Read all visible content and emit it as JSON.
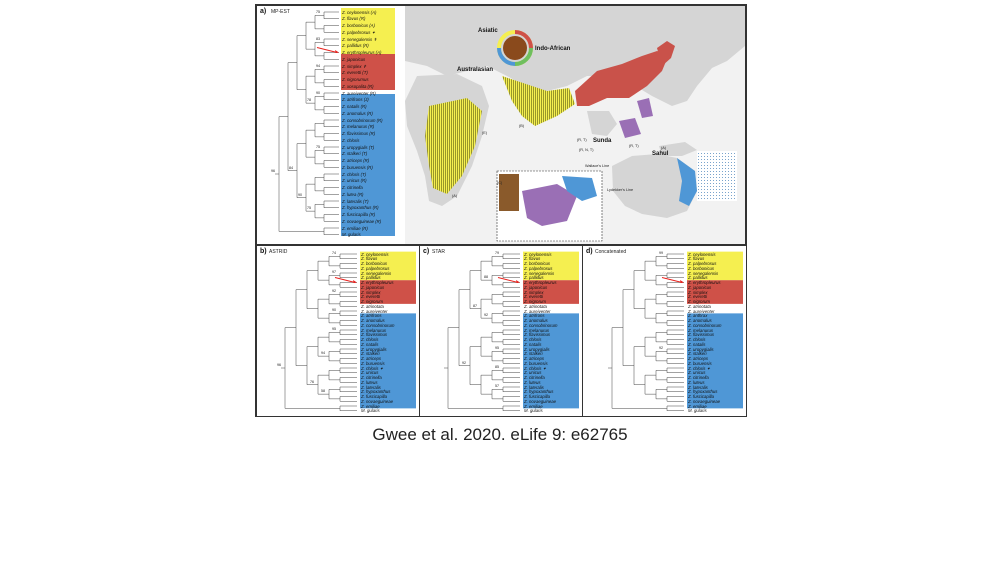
{
  "caption": "Gwee et al. 2020. eLife 9: e62765",
  "colors": {
    "yellow": "#f5ef50",
    "red": "#cf5148",
    "blue": "#4f97d6",
    "land": "#d5d5d5",
    "sea": "#ffffff",
    "arrow": "#e8201c"
  },
  "panel_a": {
    "label": "a)",
    "method": "MP-EST",
    "support_values": [
      "75",
      "83",
      "94",
      "90",
      "78",
      "75",
      "84",
      "96",
      "90",
      "75"
    ],
    "taxa": [
      "Z. ceylonensis (A)",
      "Z. flavus (R)",
      "Z. borbonicus (A)",
      "Z. palpebrosus ✦",
      "Z. senegalensis ✝",
      "Z. pallidus (R)",
      "Z. erythropleurus (A)",
      "Z. japonicus",
      "Z. simplex ✝",
      "Z. everetti (T)",
      "Z. nigrorumus",
      "Z. xosopalita (R)",
      "Z. aureiventer (R)",
      "Z. atrifrons (J)",
      "Z. natalis (R)",
      "Z. anomalus (R)",
      "Z. consobrinorum (R)",
      "Z. melanurus (R)",
      "Z. flavissimus (R)",
      "Z. chloris",
      "Z. uropygialis (T)",
      "Z. stalkeri (T)",
      "Z. atriceps (R)",
      "Z. buruensis (R)",
      "Z. chloris (T)",
      "Z. unicus (R)",
      "Z. citrinella",
      "Z. lutea (R)",
      "Z. lateralis (T)",
      "Z. hypoxanthus (R)",
      "Z. fuscicapilla (R)",
      "Z. novaeguineae (R)",
      "Z. emiliae (R)",
      "M. gularis"
    ],
    "map_labels": {
      "asiatic": "Asiatic",
      "indo_african": "Indo-African",
      "australasian": "Australasian",
      "sunda": "Sunda",
      "wallace": "Wallace's Line",
      "lydekker": "Lydekker's Line",
      "sahul": "Sahul"
    },
    "minor_labels": [
      "(A)",
      "(B)",
      "(C)",
      "(R, T)",
      "(R, N, T)",
      "(R, T)",
      "(A)",
      "(E)"
    ]
  },
  "panel_b": {
    "label": "b)",
    "method": "ASTRID",
    "support_values": [
      "74",
      "97",
      "92",
      "90",
      "95",
      "94",
      "96",
      "76",
      "58"
    ],
    "taxa": [
      "Z. ceylonensis",
      "Z. flavus",
      "Z. borbonicus",
      "Z. palpebrosus",
      "Z. senegalensis",
      "Z. pallidus",
      "Z. erythropleurus",
      "Z. japonicus",
      "Z. simplex",
      "Z. everetti",
      "Z. nigrorum",
      "Z. atrinotata",
      "Z. aureiventer",
      "Z. atrifrons",
      "Z. anomalus",
      "Z. consobrinorum",
      "Z. melanurus",
      "Z. flavissimus",
      "Z. chloris",
      "Z. natalis",
      "Z. uropygialis",
      "Z. stalkeri",
      "Z. atriceps",
      "Z. buruensis",
      "Z. chloris ✦",
      "Z. unicus",
      "Z. citrinella",
      "Z. luteus",
      "Z. lateralis",
      "Z. hypoxanthus",
      "Z. fuscicapilla",
      "Z. novaeguineae",
      "Z. emiliae",
      "M. gularis"
    ]
  },
  "panel_c": {
    "label": "c)",
    "method": "STAR",
    "support_values": [
      "79",
      "88",
      "87",
      "92",
      "95",
      "92",
      "85",
      "57"
    ],
    "taxa": [
      "Z. ceylonensis",
      "Z. flavus",
      "Z. borbonicus",
      "Z. palpebrosus",
      "Z. senegalensis",
      "Z. pallidus",
      "Z. erythropleurus",
      "Z. japonicus",
      "Z. simplex",
      "Z. everetti",
      "Z. nigrorum",
      "Z. atrinotata",
      "Z. aureiventer",
      "Z. atrifrons",
      "Z. anomalus",
      "Z. consobrinorum",
      "Z. melanurus",
      "Z. flavissimus",
      "Z. chloris",
      "Z. natalis",
      "Z. uropygialis",
      "Z. stalkeri",
      "Z. atriceps",
      "Z. buruensis",
      "Z. chloris ✦",
      "Z. unicus",
      "Z. citrinella",
      "Z. luteus",
      "Z. lateralis",
      "Z. hypoxanthus",
      "Z. fuscicapilla",
      "Z. novaeguineae",
      "Z. emiliae",
      "M. gularis"
    ]
  },
  "panel_d": {
    "label": "d)",
    "method": "Concatenated",
    "support_values": [
      "99",
      "92"
    ],
    "taxa": [
      "Z. ceylonensis",
      "Z. flavus",
      "Z. palpebrosus",
      "Z. borbonicus",
      "Z. senegalensis",
      "Z. pallidus",
      "Z. erythropleurus",
      "Z. japonicus",
      "Z. simplex",
      "Z. everetti",
      "Z. nigrorum",
      "Z. atrinotata",
      "Z. aureiventer",
      "Z. anthrax",
      "Z. anomalus",
      "Z. consobrinorum",
      "Z. melanurus",
      "Z. flavissimus",
      "Z. chloris",
      "Z. natalis",
      "Z. uropygialis",
      "Z. stalkeri",
      "Z. atriceps",
      "Z. buruensis",
      "Z. chloris ✦",
      "Z. unicus",
      "Z. citrinella",
      "Z. luteus",
      "Z. lateralis",
      "Z. hypoxanthus",
      "Z. fuscicapilla",
      "Z. novaeguineae",
      "Z. emiliae",
      "M. gularis"
    ]
  }
}
